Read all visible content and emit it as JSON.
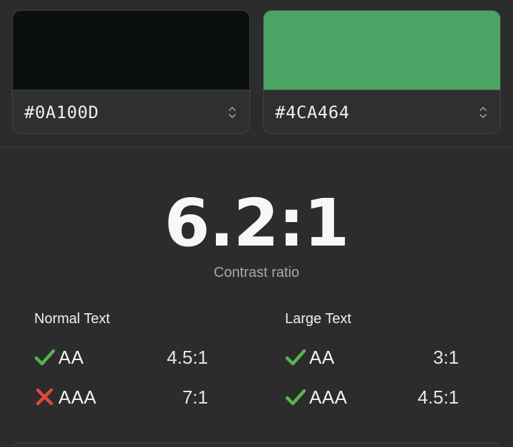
{
  "colors": {
    "foreground": {
      "hex": "#0A100D",
      "swatch": "#0a100d"
    },
    "background": {
      "hex": "#4CA464",
      "swatch": "#4ca464"
    },
    "pass": "#52b84a",
    "fail": "#e0483e"
  },
  "contrast": {
    "ratio": "6.2:1",
    "label": "Contrast ratio"
  },
  "normal_text": {
    "title": "Normal Text",
    "rows": [
      {
        "level": "AA",
        "threshold": "4.5:1",
        "status": "pass",
        "icon": "check-icon"
      },
      {
        "level": "AAA",
        "threshold": "7:1",
        "status": "fail",
        "icon": "cross-icon"
      }
    ]
  },
  "large_text": {
    "title": "Large Text",
    "rows": [
      {
        "level": "AA",
        "threshold": "3:1",
        "status": "pass",
        "icon": "check-icon"
      },
      {
        "level": "AAA",
        "threshold": "4.5:1",
        "status": "pass",
        "icon": "check-icon"
      }
    ]
  }
}
